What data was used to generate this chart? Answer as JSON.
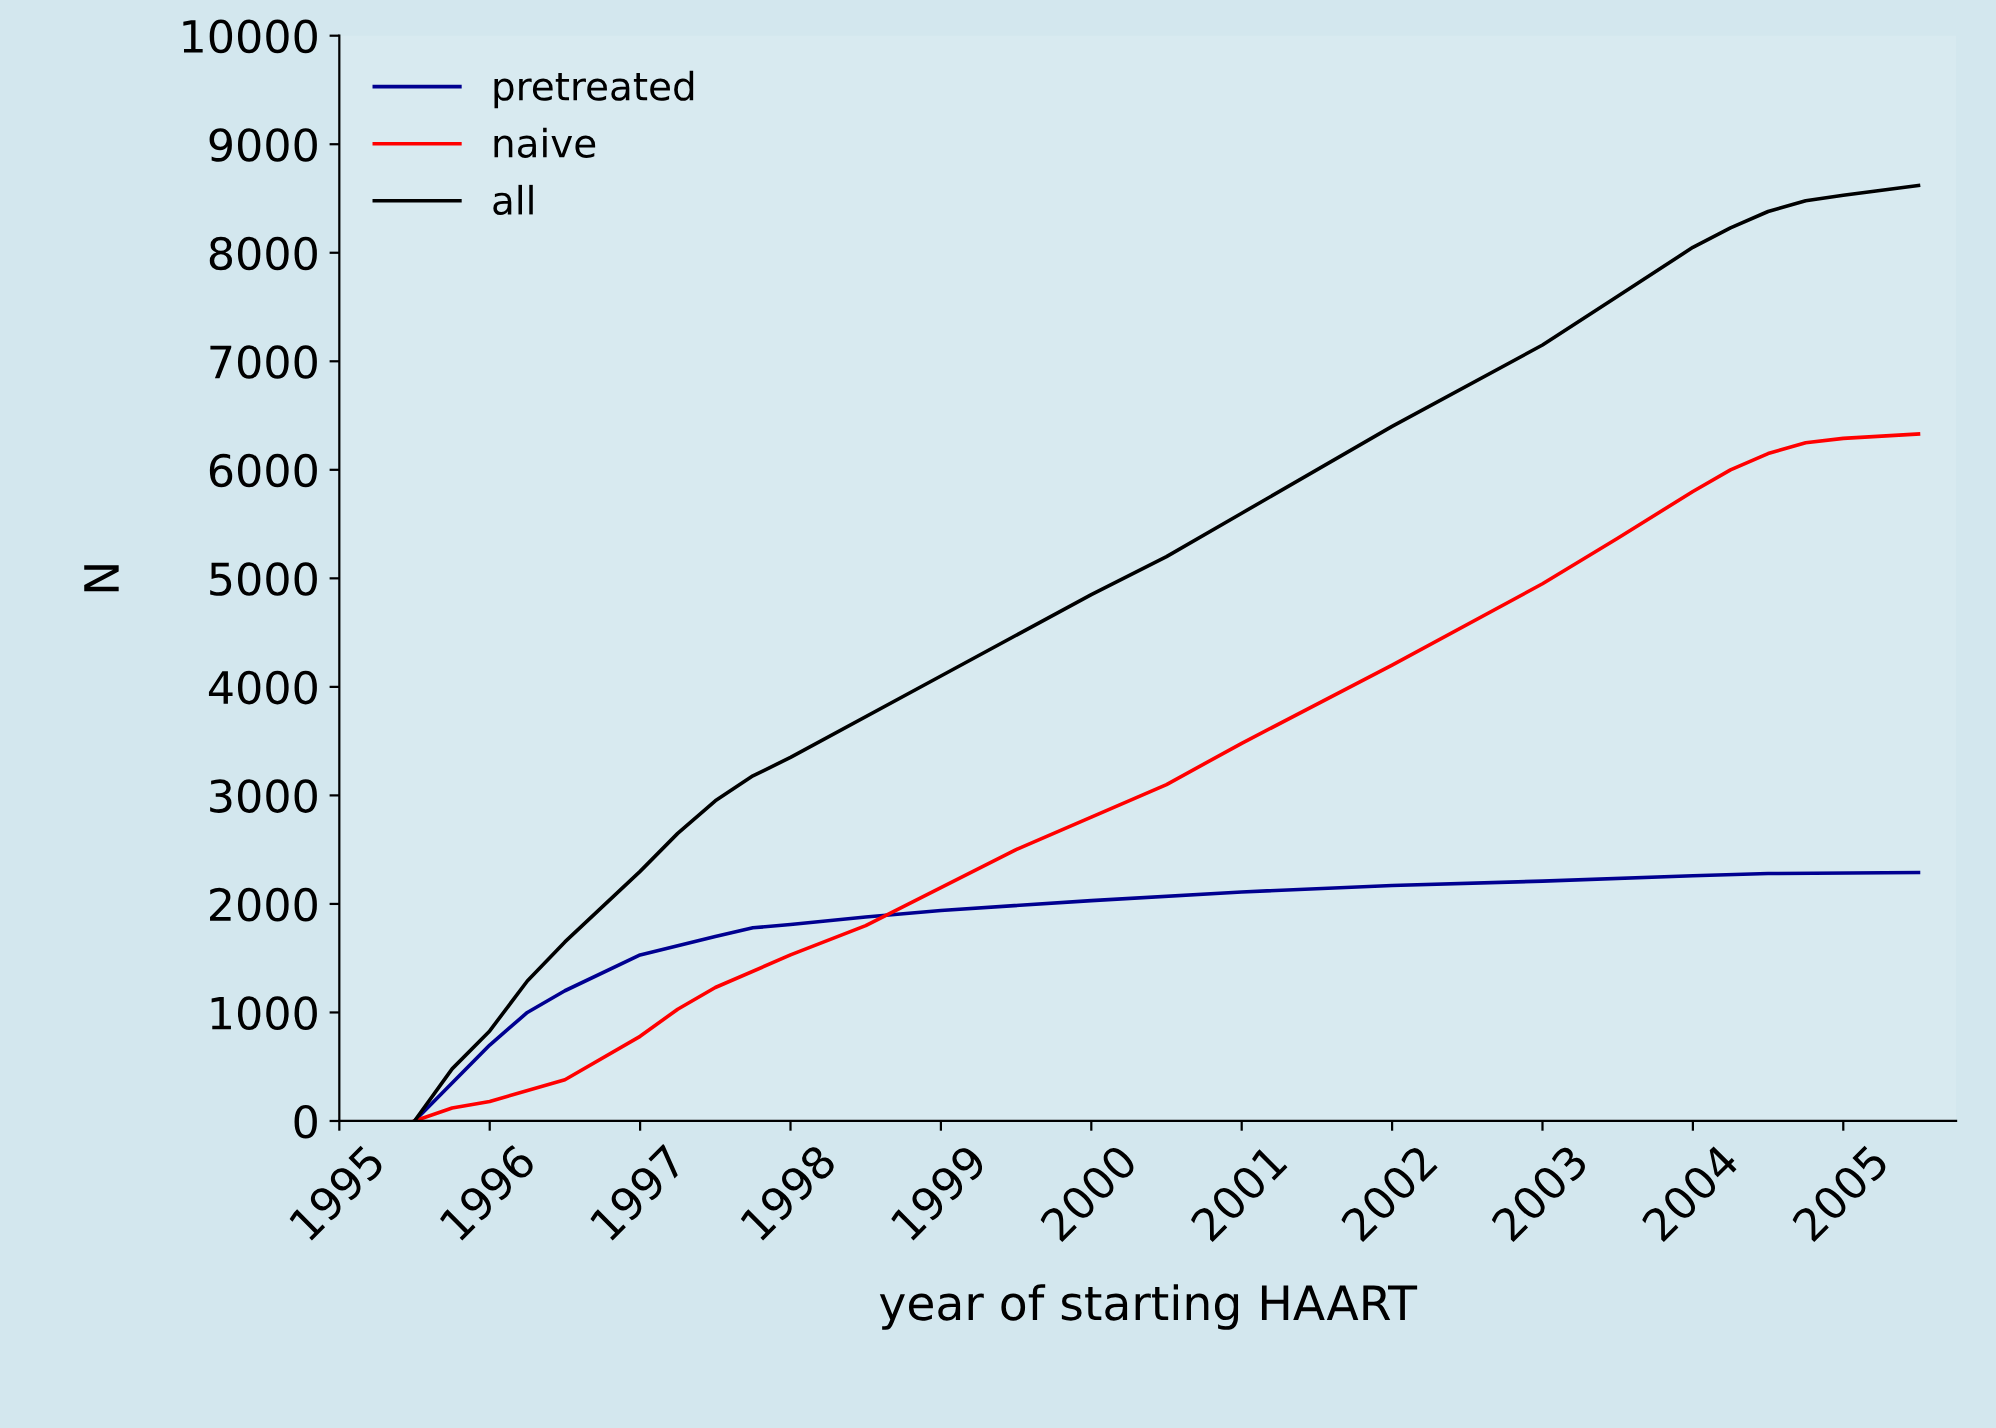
{
  "chart_data": {
    "type": "line",
    "xlabel": "year of starting HAART",
    "ylabel": "N",
    "xlim": [
      1995,
      2005.75
    ],
    "xticks": [
      1995,
      1996,
      1997,
      1998,
      1999,
      2000,
      2001,
      2002,
      2003,
      2004,
      2005
    ],
    "ylim": [
      0,
      10000
    ],
    "yticks": [
      0,
      1000,
      2000,
      3000,
      4000,
      5000,
      6000,
      7000,
      8000,
      9000,
      10000
    ],
    "grid": false,
    "legend": "top left",
    "marker": "none",
    "line_style": "solid",
    "series": [
      {
        "name": "pretreated",
        "color": "#000090",
        "x": [
          1995.5,
          1996,
          1996.25,
          1996.5,
          1997,
          1997.5,
          1997.75,
          1998,
          1998.5,
          1999,
          2000,
          2001,
          2002,
          2003,
          2004,
          2004.5,
          2005.5
        ],
        "values": [
          0,
          700,
          1000,
          1200,
          1530,
          1700,
          1780,
          1810,
          1880,
          1940,
          2030,
          2110,
          2170,
          2210,
          2260,
          2280,
          2290
        ]
      },
      {
        "name": "naive",
        "color": "#ff0000",
        "x": [
          1995.5,
          1995.75,
          1996,
          1996.5,
          1997,
          1997.25,
          1997.5,
          1998,
          1998.5,
          1999,
          1999.5,
          2000,
          2000.5,
          2001,
          2002,
          2003,
          2003.5,
          2004,
          2004.25,
          2004.5,
          2004.75,
          2005,
          2005.5
        ],
        "values": [
          0,
          120,
          180,
          380,
          780,
          1030,
          1230,
          1530,
          1800,
          2150,
          2500,
          2800,
          3100,
          3480,
          4200,
          4950,
          5370,
          5800,
          6000,
          6150,
          6250,
          6290,
          6330
        ]
      },
      {
        "name": "all",
        "color": "#000000",
        "x": [
          1995.5,
          1995.75,
          1996,
          1996.25,
          1996.5,
          1997,
          1997.25,
          1997.5,
          1997.75,
          1998,
          1999,
          2000,
          2000.5,
          2001,
          2002,
          2003,
          2003.5,
          2004,
          2004.25,
          2004.5,
          2004.75,
          2005,
          2005.5
        ],
        "values": [
          0,
          480,
          830,
          1290,
          1650,
          2300,
          2650,
          2950,
          3180,
          3350,
          4100,
          4850,
          5200,
          5600,
          6400,
          7150,
          7600,
          8050,
          8230,
          8380,
          8480,
          8530,
          8620
        ]
      }
    ]
  }
}
